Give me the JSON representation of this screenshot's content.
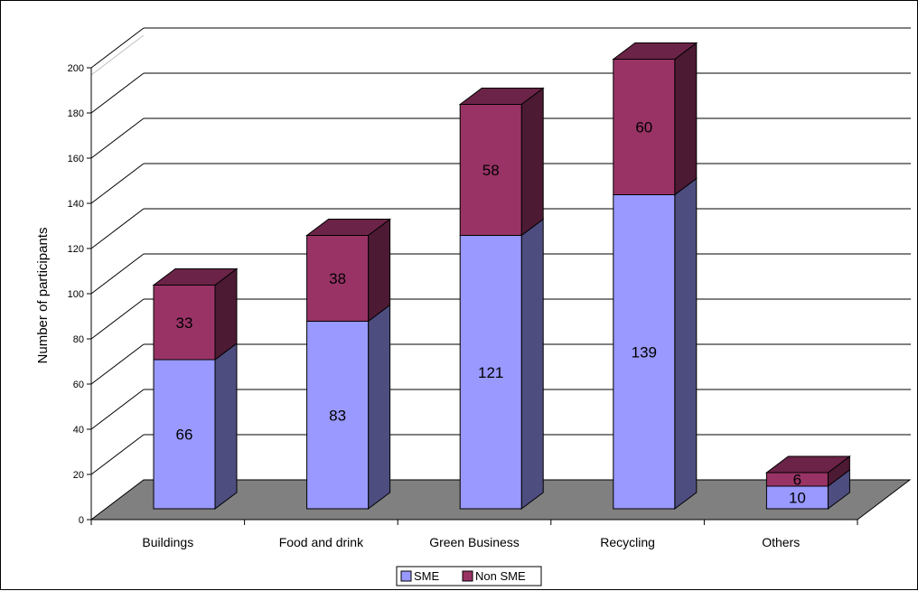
{
  "chart_data": {
    "type": "bar",
    "stacked": true,
    "three_d": true,
    "title": "",
    "xlabel": "",
    "ylabel": "Number of participants",
    "ylim": [
      0,
      200
    ],
    "yticks": [
      "0",
      "20",
      "40",
      "60",
      "80",
      "100",
      "120",
      "140",
      "160",
      "180",
      "200"
    ],
    "categories": [
      "Buildings",
      "Food and drink",
      "Green Business",
      "Recycling",
      "Others"
    ],
    "series": [
      {
        "name": "SME",
        "values": [
          66,
          83,
          121,
          139,
          10
        ],
        "color": "#9999ff",
        "side_color": "#4d4d80",
        "top_color": "#8080d0"
      },
      {
        "name": "Non SME",
        "values": [
          33,
          38,
          58,
          60,
          6
        ],
        "color": "#993366",
        "side_color": "#4d1a33",
        "top_color": "#6b2347"
      }
    ],
    "grid": true,
    "floor_color": "#808080",
    "legend_position": "bottom"
  }
}
